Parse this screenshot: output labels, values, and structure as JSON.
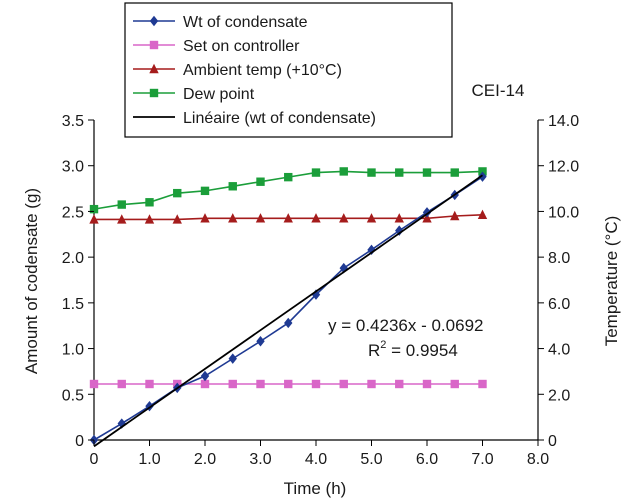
{
  "chart_data": {
    "type": "line",
    "title": "",
    "annotation_label": "CEI-14",
    "xlabel": "Time (h)",
    "ylabel_left": "Amount of codensate (g)",
    "ylabel_right": "Temperature (°C)",
    "xlim": [
      0,
      8
    ],
    "ylim_left": [
      0,
      3.5
    ],
    "ylim_right": [
      0,
      14
    ],
    "x_ticks": [
      "0",
      "1.0",
      "2.0",
      "3.0",
      "4.0",
      "5.0",
      "6.0",
      "7.0",
      "8.0"
    ],
    "y_left_ticks": [
      "0",
      "0.5",
      "1.0",
      "1.5",
      "2.0",
      "2.5",
      "3.0",
      "3.5"
    ],
    "y_right_ticks": [
      "0",
      "2.0",
      "4.0",
      "6.0",
      "8.0",
      "10.0",
      "12.0",
      "14.0"
    ],
    "grid": false,
    "legend_position": "top-left",
    "series": [
      {
        "name": "Wt of condensate",
        "axis": "left",
        "color": "#1f3a93",
        "marker": "diamond",
        "x": [
          0,
          0.5,
          1.0,
          1.5,
          2.0,
          2.5,
          3.0,
          3.5,
          4.0,
          4.5,
          5.0,
          5.5,
          6.0,
          6.5,
          7.0
        ],
        "y": [
          0,
          0.18,
          0.37,
          0.57,
          0.7,
          0.89,
          1.08,
          1.28,
          1.59,
          1.88,
          2.08,
          2.29,
          2.49,
          2.68,
          2.88
        ]
      },
      {
        "name": "Set on controller",
        "axis": "right",
        "color": "#d966c8",
        "marker": "square",
        "x": [
          0,
          0.5,
          1.0,
          1.5,
          2.0,
          2.5,
          3.0,
          3.5,
          4.0,
          4.5,
          5.0,
          5.5,
          6.0,
          6.5,
          7.0
        ],
        "y": [
          2.45,
          2.45,
          2.45,
          2.45,
          2.45,
          2.45,
          2.45,
          2.45,
          2.45,
          2.45,
          2.45,
          2.45,
          2.45,
          2.45,
          2.45
        ]
      },
      {
        "name": "Ambient temp (+10°C)",
        "axis": "right",
        "color": "#a51c1c",
        "marker": "triangle",
        "x": [
          0,
          0.5,
          1.0,
          1.5,
          2.0,
          2.5,
          3.0,
          3.5,
          4.0,
          4.5,
          5.0,
          5.5,
          6.0,
          6.5,
          7.0
        ],
        "y": [
          9.65,
          9.65,
          9.65,
          9.65,
          9.7,
          9.7,
          9.7,
          9.7,
          9.7,
          9.7,
          9.7,
          9.7,
          9.7,
          9.8,
          9.85
        ]
      },
      {
        "name": "Dew point",
        "axis": "right",
        "color": "#1b9e3a",
        "marker": "square",
        "x": [
          0,
          0.5,
          1.0,
          1.5,
          2.0,
          2.5,
          3.0,
          3.5,
          4.0,
          4.5,
          5.0,
          5.5,
          6.0,
          6.5,
          7.0
        ],
        "y": [
          10.1,
          10.3,
          10.4,
          10.8,
          10.9,
          11.1,
          11.3,
          11.5,
          11.7,
          11.75,
          11.7,
          11.7,
          11.7,
          11.7,
          11.75
        ]
      },
      {
        "name": "Linéaire (wt of condensate)",
        "axis": "left",
        "color": "#000000",
        "marker": "none",
        "x": [
          0,
          7.0
        ],
        "y": [
          -0.0692,
          2.896
        ]
      }
    ],
    "fit_equation": "y = 0.4236x - 0.0692",
    "r_squared_prefix": "R",
    "r_squared_exp": "2",
    "r_squared_value": " = 0.9954"
  }
}
